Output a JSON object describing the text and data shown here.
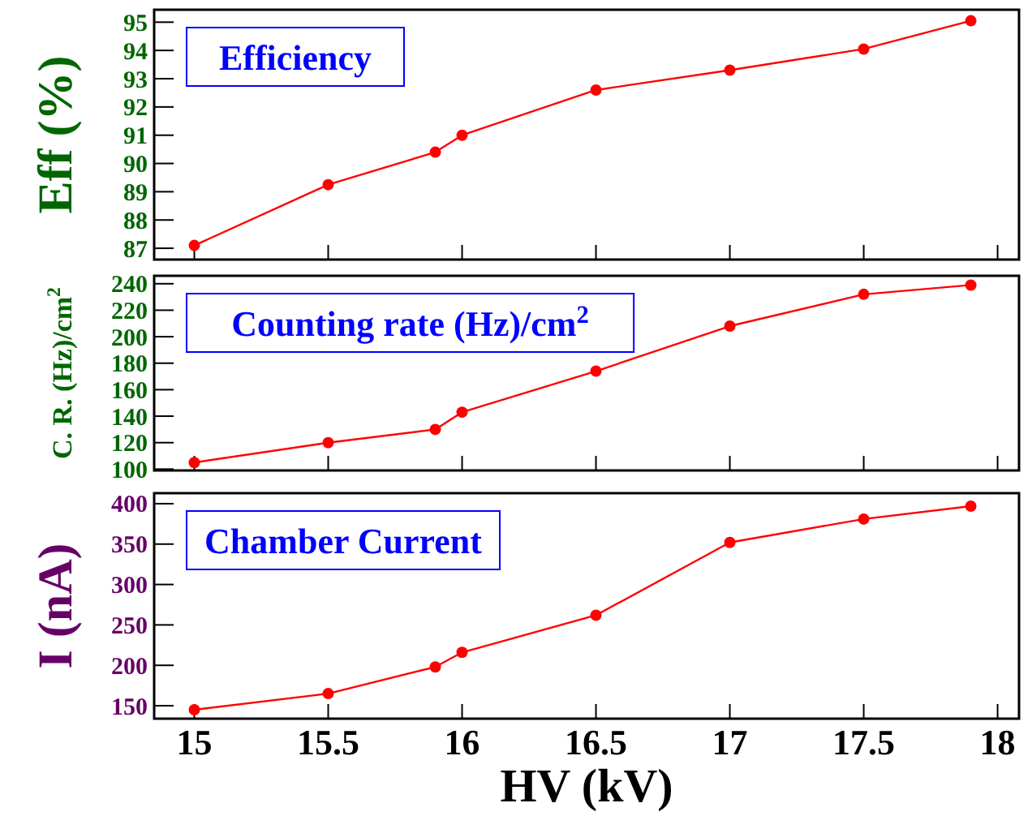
{
  "chart_data": [
    {
      "type": "line",
      "title": "Efficiency",
      "ylabel": "Eff (%)",
      "x": [
        15,
        15.5,
        15.9,
        16,
        16.5,
        17,
        17.5,
        17.9
      ],
      "xlim": [
        14.85,
        18.08
      ],
      "xticks": [
        15,
        15.5,
        16,
        16.5,
        17,
        17.5,
        18
      ],
      "ylim": [
        86.6,
        95.44
      ],
      "yticks": [
        87,
        88,
        89,
        90,
        91,
        92,
        93,
        94,
        95
      ],
      "tick_labels": "y",
      "marker": "circle",
      "series": [
        {
          "color": "#ff0000",
          "values": [
            87.1,
            89.25,
            90.4,
            91.0,
            92.6,
            93.3,
            94.05,
            95.05
          ]
        }
      ]
    },
    {
      "type": "line",
      "title": "Counting rate (Hz)/cm$^{2}$",
      "ylabel": "C. R. (Hz)/cm$^{2}$",
      "x": [
        15,
        15.5,
        15.9,
        16,
        16.5,
        17,
        17.5,
        17.9
      ],
      "xlim": [
        14.85,
        18.08
      ],
      "xticks": [
        15,
        15.5,
        16,
        16.5,
        17,
        17.5,
        18
      ],
      "ylim": [
        99,
        246
      ],
      "yticks": [
        100,
        120,
        140,
        160,
        180,
        200,
        220,
        240
      ],
      "tick_labels": "y",
      "marker": "circle",
      "series": [
        {
          "color": "#ff0000",
          "values": [
            105,
            120,
            130,
            143,
            174,
            208,
            232,
            239
          ]
        }
      ]
    },
    {
      "type": "line",
      "title": "Chamber Current",
      "ylabel": "I (nA)",
      "xlabel": "HV (kV)",
      "x": [
        15,
        15.5,
        15.9,
        16,
        16.5,
        17,
        17.5,
        17.9
      ],
      "xlim": [
        14.85,
        18.08
      ],
      "xticks": [
        15,
        15.5,
        16,
        16.5,
        17,
        17.5,
        18
      ],
      "ylim": [
        134,
        413
      ],
      "yticks": [
        150,
        200,
        250,
        300,
        350,
        400
      ],
      "marker": "circle",
      "series": [
        {
          "color": "#ff0000",
          "values": [
            145,
            165,
            198,
            216,
            262,
            352,
            381,
            397
          ]
        }
      ]
    }
  ]
}
